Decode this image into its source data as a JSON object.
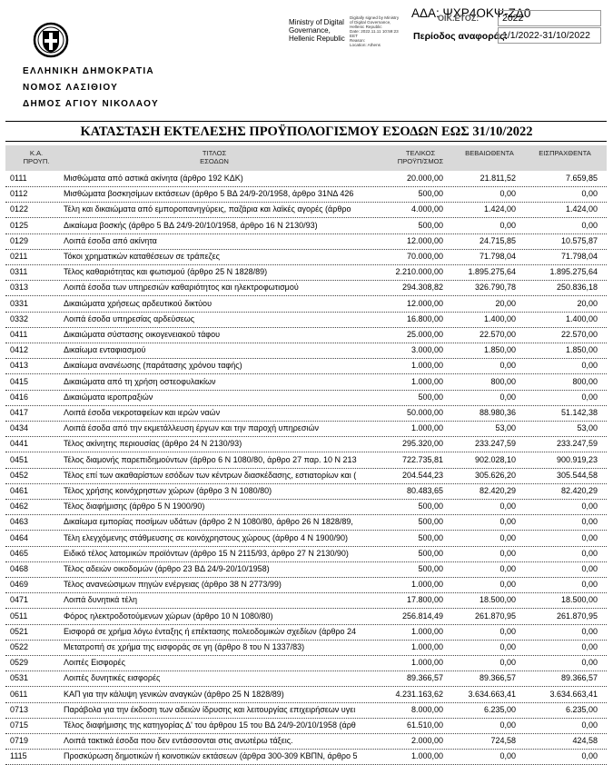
{
  "header": {
    "ministry": [
      "Ministry of Digital",
      "Governance,",
      "Hellenic Republic"
    ],
    "signature": [
      "Digitally signed by Ministry",
      "of Digital Governance,",
      "Hellenic Republic",
      "Date: 2022.11.11 10:59:23",
      "EET",
      "Reason:",
      "Location: Athens"
    ],
    "ada": "ΑΔΑ: ΨΧΡ4ΟΚΨ-ΖΔ0",
    "year_label": "ΟΙΚ.ΕΤΟΣ:",
    "year": "2022",
    "period_label": "Περίοδος αναφοράς:",
    "period": "1/1/2022-31/10/2022",
    "org": [
      "ΕΛΛΗΝΙΚΗ  ΔΗΜΟΚΡΑΤΙΑ",
      "ΝΟΜΟΣ ΛΑΣΙΘΙΟΥ",
      "ΔΗΜΟΣ ΑΓΙΟΥ ΝΙΚΟΛΑΟΥ"
    ],
    "title": "ΚΑΤΑΣΤΑΣΗ ΕΚΤΕΛΕΣΗΣ ΠΡΟΫΠΟΛΟΓΙΣΜΟΥ ΕΣΟΔΩΝ ΕΩΣ  31/10/2022"
  },
  "table": {
    "columns": [
      [
        "Κ.Α.",
        "ΠΡΟΥΠ."
      ],
      [
        "ΤΙΤΛΟΣ",
        "ΕΣΟΔΩΝ"
      ],
      [
        "ΤΕΛΙΚΟΣ",
        "ΠΡΟΫΠ/ΣΜΟΣ"
      ],
      [
        "ΒΕΒΑΙΩΘΕΝΤΑ"
      ],
      [
        "ΕΙΣΠΡΑΧΘΕΝΤΑ"
      ]
    ],
    "rows": [
      [
        "0111",
        "Μισθώματα από αστικά ακίνητα (άρθρο 192 ΚΔΚ)",
        "20.000,00",
        "21.811,52",
        "7.659,85"
      ],
      [
        "0112",
        "Μισθώματα βοσκησίμων εκτάσεων (άρθρο 5 ΒΔ 24/9-20/1958, άρθρο 31ΝΔ 426",
        "500,00",
        "0,00",
        "0,00"
      ],
      [
        "0122",
        "Τέλη και δικαιώματα από εμποροπανηγύρεις, παζάρια και λαϊκές αγορές (άρθρο",
        "4.000,00",
        "1.424,00",
        "1.424,00"
      ],
      [
        "0125",
        "Δικαίωμα βοσκής (άρθρο 5 ΒΔ 24/9-20/10/1958, άρθρο 16 Ν 2130/93)",
        "500,00",
        "0,00",
        "0,00"
      ],
      [
        "0129",
        "Λοιπά έσοδα από ακίνητα",
        "12.000,00",
        "24.715,85",
        "10.575,87"
      ],
      [
        "0211",
        "Τόκοι χρηματικών καταθέσεων σε τράπεζες",
        "70.000,00",
        "71.798,04",
        "71.798,04"
      ],
      [
        "0311",
        "Τέλος καθαριότητας και φωτισμού (άρθρο 25 Ν 1828/89)",
        "2.210.000,00",
        "1.895.275,64",
        "1.895.275,64"
      ],
      [
        "0313",
        "Λοιπά έσοδα των υπηρεσιών καθαριότητος και ηλεκτροφωτισμού",
        "294.308,82",
        "326.790,78",
        "250.836,18"
      ],
      [
        "0331",
        "Δικαιώματα χρήσεως αρδευτικού δικτύου",
        "12.000,00",
        "20,00",
        "20,00"
      ],
      [
        "0332",
        "Λοιπά έσοδα υπηρεσίας αρδεύσεως",
        "16.800,00",
        "1.400,00",
        "1.400,00"
      ],
      [
        "0411",
        "Δικαιώματα σύστασης οικογενειακού τάφου",
        "25.000,00",
        "22.570,00",
        "22.570,00"
      ],
      [
        "0412",
        "Δικαίωμα ενταφιασμού",
        "3.000,00",
        "1.850,00",
        "1.850,00"
      ],
      [
        "0413",
        "Δικαίωμα ανανέωσης (παράτασης χρόνου ταφής)",
        "1.000,00",
        "0,00",
        "0,00"
      ],
      [
        "0415",
        "Δικαιώματα από τη χρήση οστεοφυλακίων",
        "1.000,00",
        "800,00",
        "800,00"
      ],
      [
        "0416",
        "Δικαιώματα ιεροπραξιών",
        "500,00",
        "0,00",
        "0,00"
      ],
      [
        "0417",
        "Λοιπά έσοδα νεκροταφείων και ιερών ναών",
        "50.000,00",
        "88.980,36",
        "51.142,38"
      ],
      [
        "0434",
        "Λοιπά έσοδα από την εκμετάλλευση έργων και την παροχή υπηρεσιών",
        "1.000,00",
        "53,00",
        "53,00"
      ],
      [
        "0441",
        "Τέλος ακίνητης περιουσίας (άρθρο 24 Ν 2130/93)",
        "295.320,00",
        "233.247,59",
        "233.247,59"
      ],
      [
        "0451",
        "Τέλος διαμονής παρεπιδημούντων (άρθρο 6 Ν 1080/80, άρθρο 27 παρ. 10 Ν 213",
        "722.735,81",
        "902.028,10",
        "900.919,23"
      ],
      [
        "0452",
        "Τέλος επί των ακαθαρίστων εσόδων των κέντρων διασκέδασης, εστιατορίων και (",
        "204.544,23",
        "305.626,20",
        "305.544,58"
      ],
      [
        "0461",
        "Τέλος χρήσης κοινόχρηστων χώρων (άρθρο 3 Ν 1080/80)",
        "80.483,65",
        "82.420,29",
        "82.420,29"
      ],
      [
        "0462",
        "Τέλος διαφήμισης (άρθρο 5 Ν 1900/90)",
        "500,00",
        "0,00",
        "0,00"
      ],
      [
        "0463",
        "Δικαίωμα εμπορίας ποσίμων υδάτων (άρθρο 2 Ν 1080/80, άρθρο 26 Ν 1828/89,",
        "500,00",
        "0,00",
        "0,00"
      ],
      [
        "0464",
        "Τέλη ελεγχόμενης στάθμευσης σε κοινόχρηστους χώρους (άρθρο 4 Ν 1900/90)",
        "500,00",
        "0,00",
        "0,00"
      ],
      [
        "0465",
        "Ειδικό τέλος λατομικών προϊόντων (άρθρο 15 Ν 2115/93, άρθρο 27 Ν 2130/90)",
        "500,00",
        "0,00",
        "0,00"
      ],
      [
        "0468",
        "Τέλος αδειών οικοδομών (άρθρο 23 ΒΔ 24/9-20/10/1958)",
        "500,00",
        "0,00",
        "0,00"
      ],
      [
        "0469",
        "Τέλος ανανεώσιμων πηγών ενέργειας (άρθρο 38 Ν 2773/99)",
        "1.000,00",
        "0,00",
        "0,00"
      ],
      [
        "0471",
        "Λοιπά δυνητικά τέλη",
        "17.800,00",
        "18.500,00",
        "18.500,00"
      ],
      [
        "0511",
        "Φόρος ηλεκτροδοτούμενων χώρων (άρθρο 10 Ν 1080/80)",
        "256.814,49",
        "261.870,95",
        "261.870,95"
      ],
      [
        "0521",
        "Εισφορά σε χρήμα λόγω ένταξης ή επέκτασης πολεοδομικών σχεδίων (άρθρο 24",
        "1.000,00",
        "0,00",
        "0,00"
      ],
      [
        "0522",
        "Μετατροπή σε χρήμα της εισφοράς σε γη (άρθρο 8 του Ν 1337/83)",
        "1.000,00",
        "0,00",
        "0,00"
      ],
      [
        "0529",
        "Λοιπές Εισφορές",
        "1.000,00",
        "0,00",
        "0,00"
      ],
      [
        "0531",
        "Λοιπές δυνητικές εισφορές",
        "89.366,57",
        "89.366,57",
        "89.366,57"
      ],
      [
        "0611",
        "ΚΑΠ για την κάλυψη γενικών αναγκών (άρθρο 25 Ν 1828/89)",
        "4.231.163,62",
        "3.634.663,41",
        "3.634.663,41"
      ],
      [
        "0713",
        "Παράβολα για την έκδοση των αδειών ίδρυσης και λειτουργίας επιχειρήσεων υγει",
        "8.000,00",
        "6.235,00",
        "6.235,00"
      ],
      [
        "0715",
        "Τέλος διαφήμισης της κατηγορίας Δ' του άρθρου 15 του ΒΔ 24/9-20/10/1958 (άρθ",
        "61.510,00",
        "0,00",
        "0,00"
      ],
      [
        "0719",
        "Λοιπά τακτικά έσοδα που δεν εντάσσονται στις ανωτέρω τάξεις.",
        "2.000,00",
        "724,58",
        "424,58"
      ],
      [
        "1115",
        "Προσκύρωση δημοτικών ή κοινοτικών εκτάσεων (άρθρα 300-309 ΚΒΠΝ, άρθρο 5",
        "1.000,00",
        "0,00",
        "0,00"
      ]
    ]
  }
}
